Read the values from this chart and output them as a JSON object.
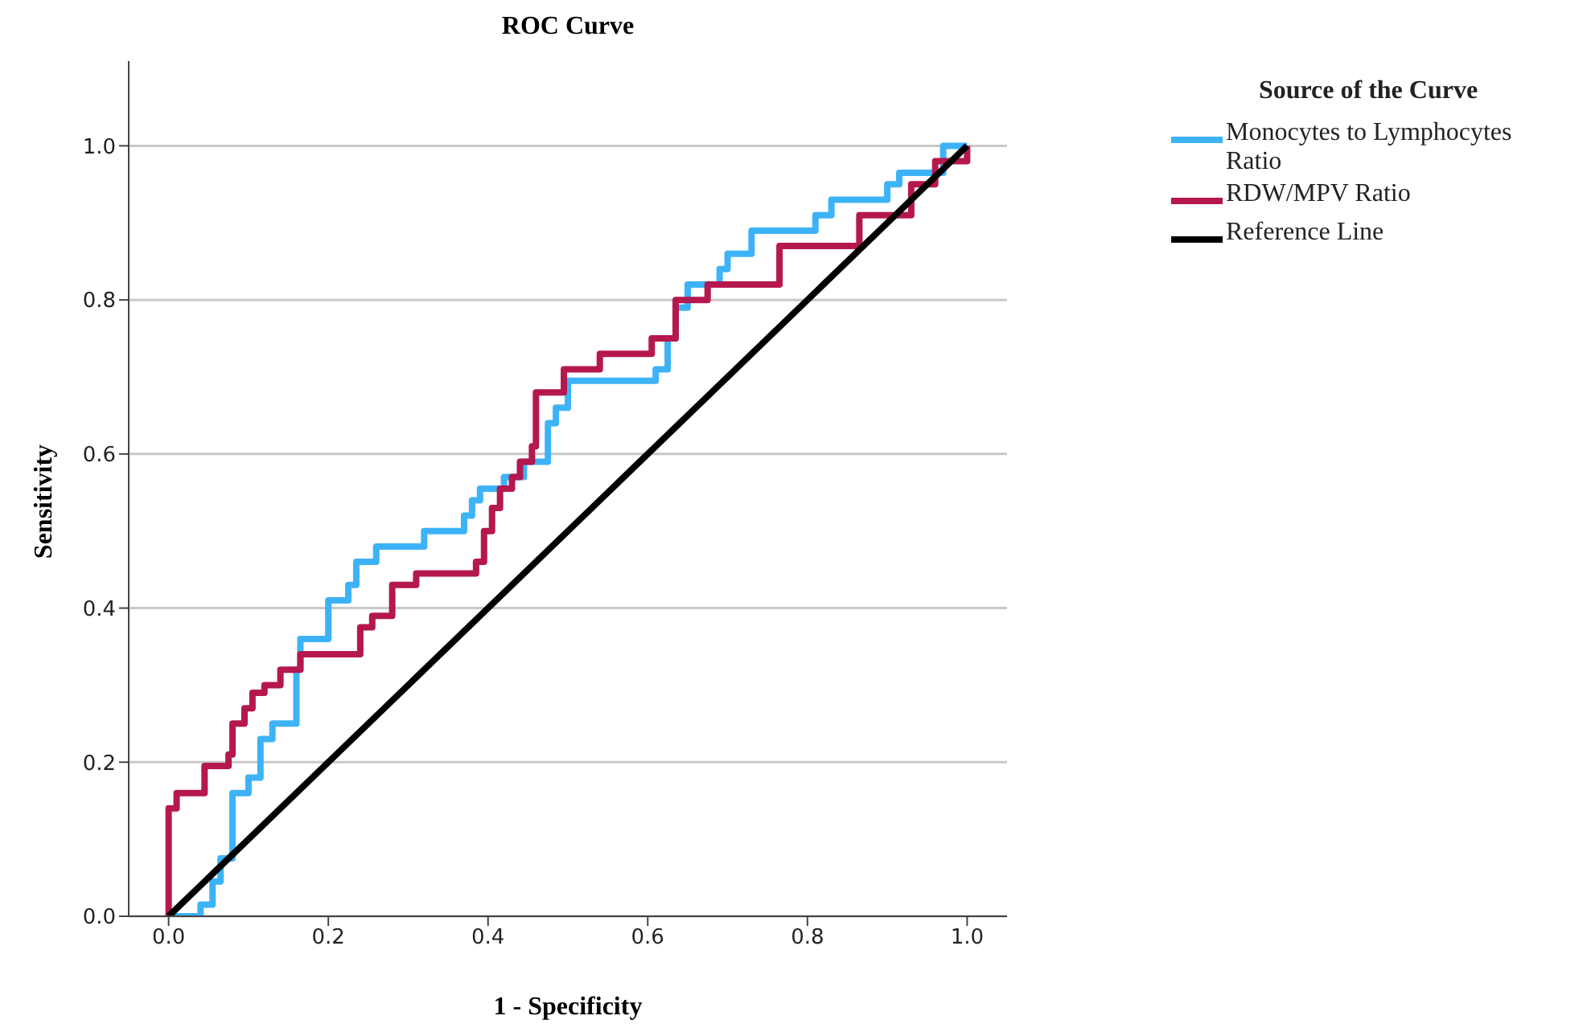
{
  "chart_data": {
    "type": "step",
    "title": "ROC Curve",
    "xlabel": "1 - Specificity",
    "ylabel": "Sensitivity",
    "legend_title": "Source of the Curve",
    "legend": "top right",
    "grid": "y",
    "line_style": "solid",
    "marker": "none",
    "xlim": [
      -0.05,
      1.05
    ],
    "ylim": [
      0,
      1.11
    ],
    "xticks": [
      {
        "value": 0,
        "label": "0.0"
      },
      {
        "value": 0.2,
        "label": "0.2"
      },
      {
        "value": 0.4,
        "label": "0.4"
      },
      {
        "value": 0.6,
        "label": "0.6"
      },
      {
        "value": 0.8,
        "label": "0.8"
      },
      {
        "value": 1,
        "label": "1.0"
      }
    ],
    "yticks": [
      {
        "value": 0,
        "label": "0.0"
      },
      {
        "value": 0.2,
        "label": "0.2"
      },
      {
        "value": 0.4,
        "label": "0.4"
      },
      {
        "value": 0.6,
        "label": "0.6"
      },
      {
        "value": 0.8,
        "label": "0.8"
      },
      {
        "value": 1,
        "label": "1.0"
      }
    ],
    "series": [
      {
        "name": "Monocytes to Lymphocytes Ratio",
        "color": "#3db3f7",
        "x": [
          0,
          0.04,
          0.055,
          0.065,
          0.08,
          0.1,
          0.115,
          0.13,
          0.16,
          0.165,
          0.2,
          0.225,
          0.235,
          0.26,
          0.32,
          0.37,
          0.38,
          0.39,
          0.42,
          0.445,
          0.475,
          0.485,
          0.5,
          0.61,
          0.625,
          0.635,
          0.65,
          0.69,
          0.7,
          0.73,
          0.81,
          0.83,
          0.9,
          0.915,
          0.97,
          1.0
        ],
        "values": [
          0,
          0.015,
          0.045,
          0.075,
          0.16,
          0.18,
          0.23,
          0.25,
          0.32,
          0.36,
          0.41,
          0.43,
          0.46,
          0.48,
          0.5,
          0.52,
          0.54,
          0.555,
          0.57,
          0.59,
          0.64,
          0.66,
          0.695,
          0.71,
          0.75,
          0.79,
          0.82,
          0.84,
          0.86,
          0.89,
          0.91,
          0.93,
          0.95,
          0.965,
          1.0,
          1.0
        ]
      },
      {
        "name": "RDW/MPV Ratio",
        "color": "#b5174f",
        "x": [
          0,
          0,
          0.01,
          0.045,
          0.075,
          0.08,
          0.095,
          0.105,
          0.12,
          0.14,
          0.165,
          0.24,
          0.255,
          0.28,
          0.31,
          0.385,
          0.395,
          0.405,
          0.415,
          0.43,
          0.44,
          0.455,
          0.46,
          0.495,
          0.54,
          0.605,
          0.635,
          0.675,
          0.765,
          0.865,
          0.93,
          0.96,
          1.0
        ],
        "values": [
          0,
          0.14,
          0.16,
          0.195,
          0.21,
          0.25,
          0.27,
          0.29,
          0.3,
          0.32,
          0.34,
          0.375,
          0.39,
          0.43,
          0.445,
          0.46,
          0.5,
          0.53,
          0.555,
          0.57,
          0.59,
          0.61,
          0.68,
          0.71,
          0.73,
          0.75,
          0.8,
          0.82,
          0.87,
          0.91,
          0.95,
          0.98,
          1.0
        ]
      },
      {
        "name": "Reference Line",
        "type": "line",
        "color": "#000000",
        "x": [
          0,
          1
        ],
        "values": [
          0,
          1
        ]
      }
    ]
  }
}
